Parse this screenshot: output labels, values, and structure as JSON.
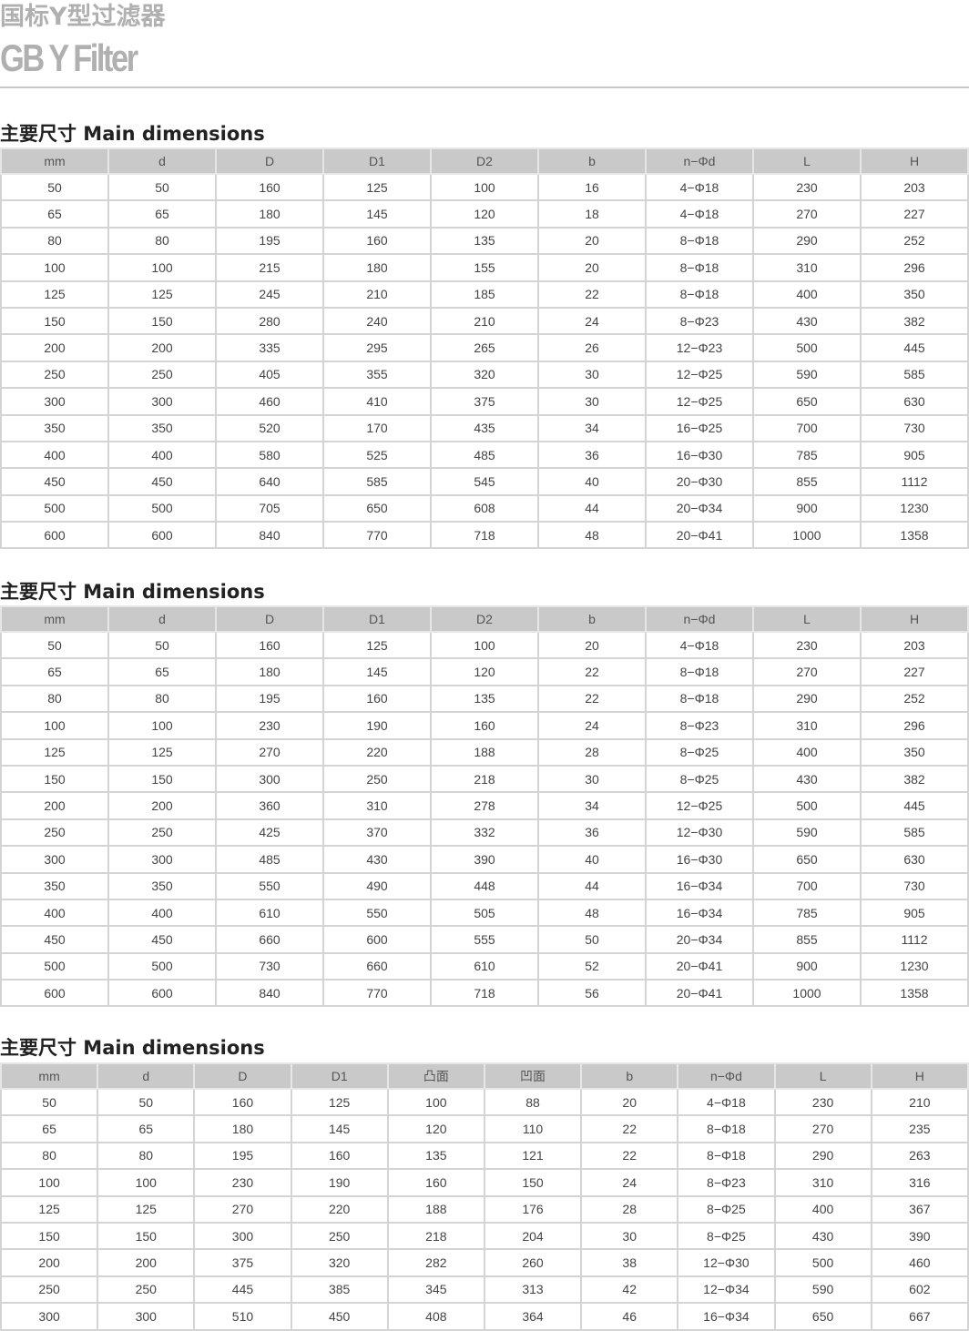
{
  "header": {
    "title_cn": "国标Y型过滤器",
    "title_en": "GB Y Filter"
  },
  "tables": [
    {
      "title": "主要尺寸 Main dimensions",
      "columns": [
        "mm",
        "d",
        "D",
        "D1",
        "D2",
        "b",
        "n−Φd",
        "L",
        "H"
      ],
      "rows": [
        [
          "50",
          "50",
          "160",
          "125",
          "100",
          "16",
          "4−Φ18",
          "230",
          "203"
        ],
        [
          "65",
          "65",
          "180",
          "145",
          "120",
          "18",
          "4−Φ18",
          "270",
          "227"
        ],
        [
          "80",
          "80",
          "195",
          "160",
          "135",
          "20",
          "8−Φ18",
          "290",
          "252"
        ],
        [
          "100",
          "100",
          "215",
          "180",
          "155",
          "20",
          "8−Φ18",
          "310",
          "296"
        ],
        [
          "125",
          "125",
          "245",
          "210",
          "185",
          "22",
          "8−Φ18",
          "400",
          "350"
        ],
        [
          "150",
          "150",
          "280",
          "240",
          "210",
          "24",
          "8−Φ23",
          "430",
          "382"
        ],
        [
          "200",
          "200",
          "335",
          "295",
          "265",
          "26",
          "12−Φ23",
          "500",
          "445"
        ],
        [
          "250",
          "250",
          "405",
          "355",
          "320",
          "30",
          "12−Φ25",
          "590",
          "585"
        ],
        [
          "300",
          "300",
          "460",
          "410",
          "375",
          "30",
          "12−Φ25",
          "650",
          "630"
        ],
        [
          "350",
          "350",
          "520",
          "170",
          "435",
          "34",
          "16−Φ25",
          "700",
          "730"
        ],
        [
          "400",
          "400",
          "580",
          "525",
          "485",
          "36",
          "16−Φ30",
          "785",
          "905"
        ],
        [
          "450",
          "450",
          "640",
          "585",
          "545",
          "40",
          "20−Φ30",
          "855",
          "1112"
        ],
        [
          "500",
          "500",
          "705",
          "650",
          "608",
          "44",
          "20−Φ34",
          "900",
          "1230"
        ],
        [
          "600",
          "600",
          "840",
          "770",
          "718",
          "48",
          "20−Φ41",
          "1000",
          "1358"
        ]
      ]
    },
    {
      "title": "主要尺寸 Main dimensions",
      "columns": [
        "mm",
        "d",
        "D",
        "D1",
        "D2",
        "b",
        "n−Φd",
        "L",
        "H"
      ],
      "rows": [
        [
          "50",
          "50",
          "160",
          "125",
          "100",
          "20",
          "4−Φ18",
          "230",
          "203"
        ],
        [
          "65",
          "65",
          "180",
          "145",
          "120",
          "22",
          "8−Φ18",
          "270",
          "227"
        ],
        [
          "80",
          "80",
          "195",
          "160",
          "135",
          "22",
          "8−Φ18",
          "290",
          "252"
        ],
        [
          "100",
          "100",
          "230",
          "190",
          "160",
          "24",
          "8−Φ23",
          "310",
          "296"
        ],
        [
          "125",
          "125",
          "270",
          "220",
          "188",
          "28",
          "8−Φ25",
          "400",
          "350"
        ],
        [
          "150",
          "150",
          "300",
          "250",
          "218",
          "30",
          "8−Φ25",
          "430",
          "382"
        ],
        [
          "200",
          "200",
          "360",
          "310",
          "278",
          "34",
          "12−Φ25",
          "500",
          "445"
        ],
        [
          "250",
          "250",
          "425",
          "370",
          "332",
          "36",
          "12−Φ30",
          "590",
          "585"
        ],
        [
          "300",
          "300",
          "485",
          "430",
          "390",
          "40",
          "16−Φ30",
          "650",
          "630"
        ],
        [
          "350",
          "350",
          "550",
          "490",
          "448",
          "44",
          "16−Φ34",
          "700",
          "730"
        ],
        [
          "400",
          "400",
          "610",
          "550",
          "505",
          "48",
          "16−Φ34",
          "785",
          "905"
        ],
        [
          "450",
          "450",
          "660",
          "600",
          "555",
          "50",
          "20−Φ34",
          "855",
          "1112"
        ],
        [
          "500",
          "500",
          "730",
          "660",
          "610",
          "52",
          "20−Φ41",
          "900",
          "1230"
        ],
        [
          "600",
          "600",
          "840",
          "770",
          "718",
          "56",
          "20−Φ41",
          "1000",
          "1358"
        ]
      ]
    },
    {
      "title": "主要尺寸 Main dimensions",
      "columns": [
        "mm",
        "d",
        "D",
        "D1",
        "凸面",
        "凹面",
        "b",
        "n−Φd",
        "L",
        "H"
      ],
      "rows": [
        [
          "50",
          "50",
          "160",
          "125",
          "100",
          "88",
          "20",
          "4−Φ18",
          "230",
          "210"
        ],
        [
          "65",
          "65",
          "180",
          "145",
          "120",
          "110",
          "22",
          "8−Φ18",
          "270",
          "235"
        ],
        [
          "80",
          "80",
          "195",
          "160",
          "135",
          "121",
          "22",
          "8−Φ18",
          "290",
          "263"
        ],
        [
          "100",
          "100",
          "230",
          "190",
          "160",
          "150",
          "24",
          "8−Φ23",
          "310",
          "316"
        ],
        [
          "125",
          "125",
          "270",
          "220",
          "188",
          "176",
          "28",
          "8−Φ25",
          "400",
          "367"
        ],
        [
          "150",
          "150",
          "300",
          "250",
          "218",
          "204",
          "30",
          "8−Φ25",
          "430",
          "390"
        ],
        [
          "200",
          "200",
          "375",
          "320",
          "282",
          "260",
          "38",
          "12−Φ30",
          "500",
          "460"
        ],
        [
          "250",
          "250",
          "445",
          "385",
          "345",
          "313",
          "42",
          "12−Φ34",
          "590",
          "602"
        ],
        [
          "300",
          "300",
          "510",
          "450",
          "408",
          "364",
          "46",
          "16−Φ34",
          "650",
          "667"
        ]
      ]
    }
  ]
}
